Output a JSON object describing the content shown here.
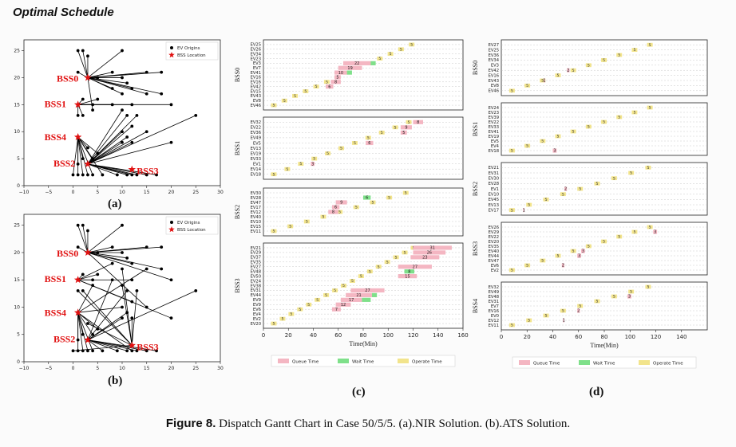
{
  "header": {
    "title": "Optimal Schedule"
  },
  "caption": {
    "label": "Figure 8.",
    "text": " Dispatch Gantt Chart in Case 50/5/5. (a).NIR Solution. (b).ATS Solution."
  },
  "panel_labels": [
    "(a)",
    "(b)",
    "(c)",
    "(d)"
  ],
  "colors": {
    "queue": "#f4b6c2",
    "wait": "#7fe08a",
    "operate": "#f2e48c",
    "bss": "#e01010"
  },
  "chart_data": [
    {
      "type": "scatter",
      "panel": "(a)",
      "xlim": [
        -10,
        30
      ],
      "ylim": [
        0,
        27
      ],
      "xticks": [
        -10,
        -5,
        0,
        5,
        10,
        15,
        20,
        25,
        30
      ],
      "yticks": [
        0,
        5,
        10,
        15,
        20,
        25
      ],
      "legend": {
        "entries": [
          "EV Origins",
          "BSS Location"
        ],
        "placement": "top-right"
      },
      "stations": [
        {
          "name": "BSS0",
          "x": 3,
          "y": 20
        },
        {
          "name": "BSS1",
          "x": 1,
          "y": 15
        },
        {
          "name": "BSS4",
          "x": 1,
          "y": 9
        },
        {
          "name": "BSS2",
          "x": 3,
          "y": 4
        },
        {
          "name": "BSS3",
          "x": 12,
          "y": 3
        }
      ],
      "origins": [
        [
          1,
          25
        ],
        [
          2,
          25
        ],
        [
          10,
          25
        ],
        [
          3,
          24
        ],
        [
          1,
          21
        ],
        [
          5,
          20
        ],
        [
          8,
          21
        ],
        [
          10,
          20
        ],
        [
          15,
          21
        ],
        [
          18,
          21
        ],
        [
          11,
          19
        ],
        [
          12,
          18
        ],
        [
          8,
          18
        ],
        [
          10,
          17
        ],
        [
          15,
          17
        ],
        [
          18,
          17
        ],
        [
          2,
          16
        ],
        [
          5,
          16
        ],
        [
          2,
          13
        ],
        [
          1,
          13
        ],
        [
          4,
          15
        ],
        [
          8,
          15
        ],
        [
          12,
          15
        ],
        [
          20,
          15
        ],
        [
          4,
          14
        ],
        [
          10,
          14
        ],
        [
          11,
          13
        ],
        [
          13,
          13
        ],
        [
          12,
          11
        ],
        [
          10,
          10
        ],
        [
          15,
          10
        ],
        [
          11,
          9
        ],
        [
          12,
          8
        ],
        [
          10,
          8
        ],
        [
          20,
          8
        ],
        [
          25,
          13
        ],
        [
          3,
          7
        ],
        [
          5,
          6
        ],
        [
          2,
          5
        ],
        [
          4,
          5
        ],
        [
          1,
          4
        ],
        [
          0,
          2
        ],
        [
          1,
          2
        ],
        [
          2,
          2
        ],
        [
          3,
          2
        ],
        [
          4,
          2
        ],
        [
          6,
          2
        ],
        [
          9,
          2
        ],
        [
          13,
          2
        ],
        [
          15,
          2
        ],
        [
          17,
          2
        ],
        [
          11,
          2
        ],
        [
          12,
          2
        ]
      ],
      "assignment": [
        0,
        0,
        0,
        0,
        0,
        0,
        0,
        0,
        0,
        0,
        0,
        0,
        0,
        0,
        0,
        0,
        1,
        1,
        1,
        1,
        1,
        1,
        1,
        1,
        0,
        3,
        3,
        3,
        3,
        3,
        3,
        3,
        3,
        3,
        3,
        3,
        2,
        2,
        2,
        2,
        2,
        2,
        2,
        2,
        2,
        2,
        2,
        3,
        3,
        3,
        3,
        3,
        3
      ]
    },
    {
      "type": "scatter",
      "panel": "(b)",
      "xlim": [
        -10,
        30
      ],
      "ylim": [
        0,
        27
      ],
      "xticks": [
        -10,
        -5,
        0,
        5,
        10,
        15,
        20,
        25,
        30
      ],
      "yticks": [
        0,
        5,
        10,
        15,
        20,
        25
      ],
      "legend": {
        "entries": [
          "EV Origins",
          "BSS Location"
        ],
        "placement": "top-right"
      },
      "stations": [
        {
          "name": "BSS0",
          "x": 3,
          "y": 20
        },
        {
          "name": "BSS1",
          "x": 1,
          "y": 15
        },
        {
          "name": "BSS4",
          "x": 1,
          "y": 9
        },
        {
          "name": "BSS2",
          "x": 3,
          "y": 4
        },
        {
          "name": "BSS3",
          "x": 12,
          "y": 3
        }
      ],
      "origins": [
        [
          1,
          25
        ],
        [
          2,
          25
        ],
        [
          10,
          25
        ],
        [
          3,
          24
        ],
        [
          1,
          21
        ],
        [
          5,
          20
        ],
        [
          8,
          21
        ],
        [
          10,
          20
        ],
        [
          15,
          21
        ],
        [
          18,
          21
        ],
        [
          11,
          19
        ],
        [
          12,
          18
        ],
        [
          8,
          18
        ],
        [
          10,
          17
        ],
        [
          15,
          17
        ],
        [
          18,
          17
        ],
        [
          2,
          16
        ],
        [
          5,
          16
        ],
        [
          2,
          13
        ],
        [
          1,
          13
        ],
        [
          4,
          15
        ],
        [
          8,
          15
        ],
        [
          12,
          15
        ],
        [
          20,
          15
        ],
        [
          4,
          14
        ],
        [
          10,
          14
        ],
        [
          11,
          13
        ],
        [
          13,
          13
        ],
        [
          12,
          11
        ],
        [
          10,
          10
        ],
        [
          15,
          10
        ],
        [
          11,
          9
        ],
        [
          12,
          8
        ],
        [
          10,
          8
        ],
        [
          20,
          8
        ],
        [
          25,
          13
        ],
        [
          3,
          7
        ],
        [
          5,
          6
        ],
        [
          2,
          5
        ],
        [
          4,
          5
        ],
        [
          1,
          4
        ],
        [
          0,
          2
        ],
        [
          1,
          2
        ],
        [
          2,
          2
        ],
        [
          3,
          2
        ],
        [
          4,
          2
        ],
        [
          6,
          2
        ],
        [
          9,
          2
        ],
        [
          13,
          2
        ],
        [
          15,
          2
        ],
        [
          17,
          2
        ],
        [
          11,
          2
        ],
        [
          12,
          2
        ]
      ],
      "assignment": [
        0,
        0,
        0,
        0,
        0,
        0,
        0,
        0,
        0,
        0,
        0,
        0,
        1,
        4,
        2,
        0,
        1,
        1,
        4,
        4,
        1,
        3,
        1,
        0,
        2,
        4,
        3,
        4,
        1,
        2,
        0,
        3,
        4,
        3,
        1,
        3,
        4,
        2,
        2,
        2,
        2,
        4,
        2,
        2,
        2,
        2,
        3,
        3,
        3,
        3,
        3,
        3,
        2
      ]
    },
    {
      "type": "gantt",
      "panel": "(c)",
      "xlabel": "Time(Min)",
      "xlim": [
        0,
        160
      ],
      "xticks": [
        0,
        20,
        40,
        60,
        80,
        100,
        120,
        140,
        160
      ],
      "legend": {
        "entries": [
          "Queue Time",
          "Wait Time",
          "Operate Time"
        ],
        "placement": "bottom"
      },
      "groups": [
        {
          "name": "BSS0",
          "evs": [
            "EV25",
            "EV26",
            "EV34",
            "EV23",
            "EV3",
            "EV7",
            "EV41",
            "EV16",
            "EV16",
            "EV42",
            "EV15",
            "EV43",
            "EV8",
            "EV46"
          ],
          "ops": [
            [
              108,
              5
            ],
            [
              100,
              5
            ],
            [
              95,
              5
            ],
            [
              92,
              5
            ],
            [
              95,
              5
            ],
            [
              88,
              5
            ],
            [
              78,
              5
            ],
            [
              71,
              5
            ],
            [
              67,
              5
            ],
            [
              63,
              5
            ],
            [
              58,
              5
            ],
            [
              43,
              5
            ],
            [
              36,
              5
            ],
            [
              28,
              5
            ],
            [
              19,
              5
            ],
            [
              10,
              5
            ]
          ],
          "rows_ops": [
            0,
            1,
            1,
            2,
            3,
            4,
            5,
            6,
            7,
            7,
            8,
            9,
            10,
            11,
            12,
            13
          ],
          "bars": [
            {
              "row": 4,
              "start": 64,
              "queue": 22,
              "wait": 4,
              "label": "22"
            },
            {
              "row": 5,
              "start": 60,
              "queue": 19,
              "wait": 0,
              "label": "19"
            },
            {
              "row": 6,
              "start": 57,
              "queue": 10,
              "wait": 4,
              "label": "10"
            },
            {
              "row": 7,
              "start": 57,
              "queue": 5,
              "wait": 0,
              "label": "5"
            },
            {
              "row": 8,
              "start": 54,
              "queue": 8,
              "wait": 0,
              "label": "8"
            },
            {
              "row": 9,
              "start": 50,
              "queue": 6,
              "wait": 0,
              "label": "6"
            }
          ]
        },
        {
          "name": "BSS1",
          "evs": [
            "EV32",
            "EV22",
            "EV36",
            "EV49",
            "EV5",
            "EV13",
            "EV19",
            "EV33",
            "EV1",
            "EV14",
            "EV18"
          ],
          "bars": [
            {
              "row": 0,
              "start": 120,
              "queue": 8,
              "wait": 0,
              "label": "8"
            },
            {
              "row": 1,
              "start": 110,
              "queue": 9,
              "wait": 0,
              "label": "9"
            },
            {
              "row": 2,
              "start": 110,
              "queue": 5,
              "wait": 0,
              "label": "5"
            },
            {
              "row": 4,
              "start": 82,
              "queue": 6,
              "wait": 0,
              "label": "6"
            },
            {
              "row": 8,
              "start": 38,
              "queue": 3,
              "wait": 0,
              "label": "3"
            }
          ]
        },
        {
          "name": "BSS2",
          "evs": [
            "EV30",
            "EV28",
            "EV47",
            "EV17",
            "EV12",
            "EV40",
            "EV10",
            "EV15",
            "EV11"
          ],
          "bars": [
            {
              "row": 1,
              "start": 80,
              "queue": 0,
              "wait": 6,
              "label": "6"
            },
            {
              "row": 2,
              "start": 58,
              "queue": 9,
              "wait": 0,
              "label": "9"
            },
            {
              "row": 3,
              "start": 55,
              "queue": 6,
              "wait": 0,
              "label": "6"
            },
            {
              "row": 4,
              "start": 52,
              "queue": 8,
              "wait": 0,
              "label": "8"
            }
          ]
        },
        {
          "name": "BSS3",
          "evs": [
            "EV21",
            "EV29",
            "EV37",
            "EV35",
            "EV27",
            "EV48",
            "EV50",
            "EV24",
            "EV38",
            "EV31",
            "EV44",
            "EV9",
            "EV9",
            "EV6",
            "EV4",
            "EV2",
            "EV20"
          ],
          "bars": [
            {
              "row": 0,
              "start": 120,
              "queue": 31,
              "wait": 0,
              "label": "31"
            },
            {
              "row": 1,
              "start": 120,
              "queue": 26,
              "wait": 0,
              "label": "26"
            },
            {
              "row": 2,
              "start": 118,
              "queue": 23,
              "wait": 0,
              "label": "23"
            },
            {
              "row": 4,
              "start": 108,
              "queue": 27,
              "wait": 0,
              "label": "27"
            },
            {
              "row": 5,
              "start": 113,
              "queue": 0,
              "wait": 8,
              "label": "8"
            },
            {
              "row": 6,
              "start": 108,
              "queue": 15,
              "wait": 0,
              "label": "15"
            },
            {
              "row": 9,
              "start": 70,
              "queue": 27,
              "wait": 0,
              "label": "27"
            },
            {
              "row": 10,
              "start": 66,
              "queue": 21,
              "wait": 4,
              "label": "21"
            },
            {
              "row": 11,
              "start": 62,
              "queue": 17,
              "wait": 7,
              "label": "17"
            },
            {
              "row": 12,
              "start": 58,
              "queue": 12,
              "wait": 0,
              "label": "12"
            },
            {
              "row": 13,
              "start": 55,
              "queue": 7,
              "wait": 0,
              "label": "7"
            }
          ]
        }
      ]
    },
    {
      "type": "gantt",
      "panel": "(d)",
      "xlabel": "Time(Min)",
      "xlim": [
        0,
        160
      ],
      "xticks": [
        0,
        20,
        40,
        60,
        80,
        100,
        120,
        140
      ],
      "legend": {
        "entries": [
          "Queue Time",
          "Wait Time",
          "Operate Time"
        ],
        "placement": "bottom"
      },
      "groups": [
        {
          "name": "BSS0",
          "evs": [
            "EV27",
            "EV25",
            "EV36",
            "EV34",
            "EV3",
            "EV42",
            "EV16",
            "EV43",
            "EV8",
            "EV46"
          ],
          "bars": [
            {
              "row": 5,
              "start": 51,
              "queue": 2,
              "wait": 0,
              "label": "2"
            },
            {
              "row": 7,
              "start": 33,
              "queue": 1,
              "wait": 0,
              "label": "1"
            }
          ]
        },
        {
          "name": "BSS1",
          "evs": [
            "EV24",
            "EV23",
            "EV39",
            "EV22",
            "EV33",
            "EV41",
            "EV19",
            "EV5",
            "EV4",
            "EV18"
          ],
          "bars": [
            {
              "row": 9,
              "start": 40,
              "queue": 3,
              "wait": 0,
              "label": "3"
            }
          ]
        },
        {
          "name": "BSS2",
          "evs": [
            "EV21",
            "EV31",
            "EV30",
            "EV28",
            "EV1",
            "EV10",
            "EV45",
            "EV13",
            "EV17"
          ],
          "bars": [
            {
              "row": 4,
              "start": 49,
              "queue": 2,
              "wait": 0,
              "label": "2"
            },
            {
              "row": 8,
              "start": 17,
              "queue": 1,
              "wait": 0,
              "label": "1"
            }
          ]
        },
        {
          "name": "BSS3",
          "evs": [
            "EV26",
            "EV29",
            "EV22",
            "EV20",
            "EV35",
            "EV40",
            "EV44",
            "EV47",
            "EV6",
            "EV2"
          ],
          "bars": [
            {
              "row": 1,
              "start": 118,
              "queue": 3,
              "wait": 0,
              "label": "3"
            },
            {
              "row": 5,
              "start": 62,
              "queue": 3,
              "wait": 0,
              "label": "3"
            },
            {
              "row": 6,
              "start": 59,
              "queue": 3,
              "wait": 0,
              "label": "3"
            },
            {
              "row": 8,
              "start": 47,
              "queue": 2,
              "wait": 0,
              "label": "2"
            }
          ]
        },
        {
          "name": "BSS4",
          "evs": [
            "EV32",
            "EV49",
            "EV48",
            "EV31",
            "EV7",
            "EV16",
            "EV0",
            "EV12",
            "EV11"
          ],
          "bars": [
            {
              "row": 2,
              "start": 98,
              "queue": 3,
              "wait": 0,
              "label": "3"
            },
            {
              "row": 5,
              "start": 59,
              "queue": 2,
              "wait": 0,
              "label": "2"
            },
            {
              "row": 7,
              "start": 48,
              "queue": 1,
              "wait": 0,
              "label": "1"
            }
          ]
        }
      ]
    }
  ]
}
